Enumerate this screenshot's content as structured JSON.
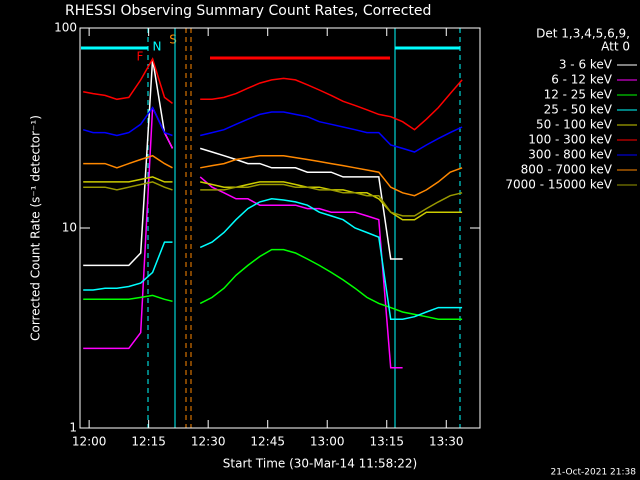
{
  "chart_data": {
    "type": "line",
    "title": "RHESSI Observing Summary Count Rates, Corrected",
    "xlabel": "Start Time (30-Mar-14 11:58:22)",
    "ylabel": "Corrected Count Rate (s⁻¹ detector⁻¹)",
    "legend_title": [
      "Det 1,3,4,5,6,9,",
      "Att 0"
    ],
    "footer": "21-Oct-2021 21:38",
    "flags": [
      "F",
      "N",
      "S"
    ],
    "log_y": true,
    "legend": "right",
    "xlim": [
      -2.3,
      98.5
    ],
    "ylim": [
      1,
      100
    ],
    "yticks": [
      1,
      10,
      100
    ],
    "xticks": [
      {
        "value": 0,
        "label": "12:00"
      },
      {
        "value": 15,
        "label": "12:15"
      },
      {
        "value": 30,
        "label": "12:30"
      },
      {
        "value": 45,
        "label": "12:45"
      },
      {
        "value": 60,
        "label": "13:00"
      },
      {
        "value": 75,
        "label": "13:15"
      },
      {
        "value": 90,
        "label": "13:30"
      }
    ],
    "x": [
      -1.5,
      1,
      4,
      7,
      10,
      13,
      16,
      19,
      21,
      24,
      28,
      31,
      34,
      37,
      40,
      43,
      46,
      49,
      52,
      55,
      58,
      61,
      64,
      67,
      70,
      73,
      76,
      79,
      82,
      85,
      88,
      91,
      94
    ],
    "series": [
      {
        "name": "3 - 6 keV",
        "color": "#ffffff",
        "values": [
          6.5,
          6.5,
          6.5,
          6.5,
          6.5,
          7.5,
          70,
          30,
          25,
          null,
          25,
          24,
          23,
          22,
          21,
          21,
          20,
          20,
          20,
          19,
          19,
          19,
          18,
          18,
          18,
          18,
          7,
          7,
          null,
          null,
          null,
          null,
          null
        ]
      },
      {
        "name": "6 - 12 keV",
        "color": "#ff00ff",
        "values": [
          2.5,
          2.5,
          2.5,
          2.5,
          2.5,
          3,
          40,
          30,
          25,
          null,
          18,
          16,
          15,
          14,
          14,
          13,
          13,
          13,
          13,
          12.5,
          12.5,
          12,
          12,
          12,
          11.5,
          11,
          2,
          2,
          null,
          null,
          null,
          null,
          null
        ]
      },
      {
        "name": "12 - 25 keV",
        "color": "#00ff00",
        "values": [
          4.4,
          4.4,
          4.4,
          4.4,
          4.4,
          4.5,
          4.6,
          4.4,
          4.3,
          null,
          4.2,
          4.5,
          5,
          5.8,
          6.5,
          7.2,
          7.8,
          7.8,
          7.5,
          7,
          6.5,
          6,
          5.5,
          5,
          4.5,
          4.2,
          4,
          3.8,
          3.7,
          3.6,
          3.5,
          3.5,
          3.5
        ]
      },
      {
        "name": "25 - 50 keV",
        "color": "#00ffff",
        "values": [
          4.9,
          4.9,
          5,
          5,
          5.1,
          5.3,
          6,
          8.5,
          8.5,
          null,
          8,
          8.5,
          9.5,
          11,
          12.5,
          13.5,
          14,
          13.8,
          13.5,
          13,
          12,
          11.5,
          11,
          10,
          9.5,
          9,
          3.5,
          3.5,
          3.6,
          3.8,
          4,
          4,
          4
        ]
      },
      {
        "name": "50 - 100 keV",
        "color": "#cccc00",
        "values": [
          17,
          17,
          17,
          17,
          17,
          17.5,
          18,
          17,
          17,
          null,
          17,
          16.5,
          16,
          16,
          16.5,
          17,
          17,
          17,
          16.5,
          16,
          16,
          15.5,
          15.5,
          15,
          15,
          14,
          12,
          11,
          11,
          12,
          12,
          12,
          12
        ]
      },
      {
        "name": "100 - 300 keV",
        "color": "#ff0000",
        "values": [
          48,
          47,
          46,
          44,
          45,
          55,
          70,
          45,
          42,
          null,
          44,
          44,
          45,
          47,
          50,
          53,
          55,
          56,
          55,
          52,
          49,
          46,
          43,
          41,
          39,
          37,
          36,
          34,
          31,
          35,
          40,
          47,
          55
        ]
      },
      {
        "name": "300 - 800 keV",
        "color": "#0000ff",
        "values": [
          31,
          30,
          30,
          29,
          30,
          33,
          40,
          30,
          29,
          null,
          29,
          30,
          31,
          33,
          35,
          37,
          38,
          38,
          37,
          36,
          34,
          33,
          32,
          31,
          30,
          30,
          26,
          25,
          24,
          26,
          28,
          30,
          32
        ]
      },
      {
        "name": "800 - 7000 keV",
        "color": "#ff8800",
        "values": [
          21,
          21,
          21,
          20,
          21,
          22,
          23,
          21,
          20,
          null,
          20,
          20.5,
          21,
          22,
          22.5,
          23,
          23,
          23,
          22.5,
          22,
          21.5,
          21,
          20.5,
          20,
          19.5,
          19,
          16,
          15,
          14.5,
          15.5,
          17,
          19,
          20
        ]
      },
      {
        "name": "7000 - 15000 keV",
        "color": "#999900",
        "values": [
          16,
          16,
          16,
          15.5,
          16,
          16.5,
          17,
          16,
          15.5,
          null,
          15.5,
          15.5,
          15.5,
          16,
          16,
          16.5,
          16.5,
          16.5,
          16,
          16,
          15.5,
          15.5,
          15,
          15,
          14.5,
          14.5,
          12,
          11.5,
          11.5,
          12.5,
          13.5,
          14.5,
          15
        ]
      }
    ]
  }
}
